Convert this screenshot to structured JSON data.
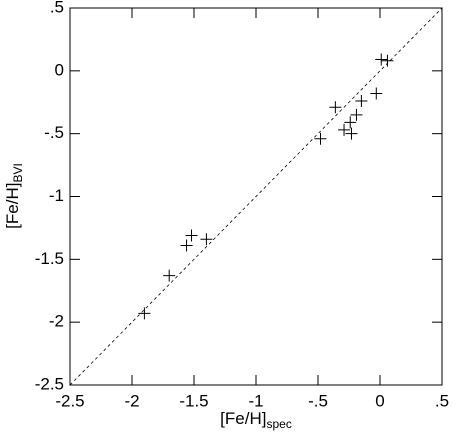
{
  "chart_data": {
    "type": "scatter",
    "x_label": "[Fe/H]",
    "x_label_sub": "spec",
    "y_label": "[Fe/H]",
    "y_label_sub": "BVI",
    "series": [
      {
        "color": "#000000",
        "x": [
          -1.9,
          -1.7,
          -1.56,
          -1.52,
          -1.4,
          -0.48,
          -0.36,
          -0.29,
          -0.24,
          -0.23,
          -0.19,
          -0.15,
          -0.03,
          0.01,
          0.06
        ],
        "values": [
          -1.93,
          -1.63,
          -1.39,
          -1.31,
          -1.34,
          -0.54,
          -0.29,
          -0.47,
          -0.41,
          -0.5,
          -0.35,
          -0.24,
          -0.18,
          0.09,
          0.08
        ]
      }
    ],
    "xlim": [
      -2.5,
      0.5
    ],
    "ylim": [
      -2.5,
      0.5
    ],
    "xticks": [
      -2.5,
      -2,
      -1.5,
      -1,
      {
        "value": -0.5,
        "label": "-.5"
      },
      0,
      {
        "value": 0.5,
        "label": ".5"
      }
    ],
    "yticks": [
      -2.5,
      -2,
      -1.5,
      -1,
      {
        "value": -0.5,
        "label": "-.5"
      },
      0,
      {
        "value": 0.5,
        "label": ".5"
      }
    ],
    "identity_line": true
  }
}
